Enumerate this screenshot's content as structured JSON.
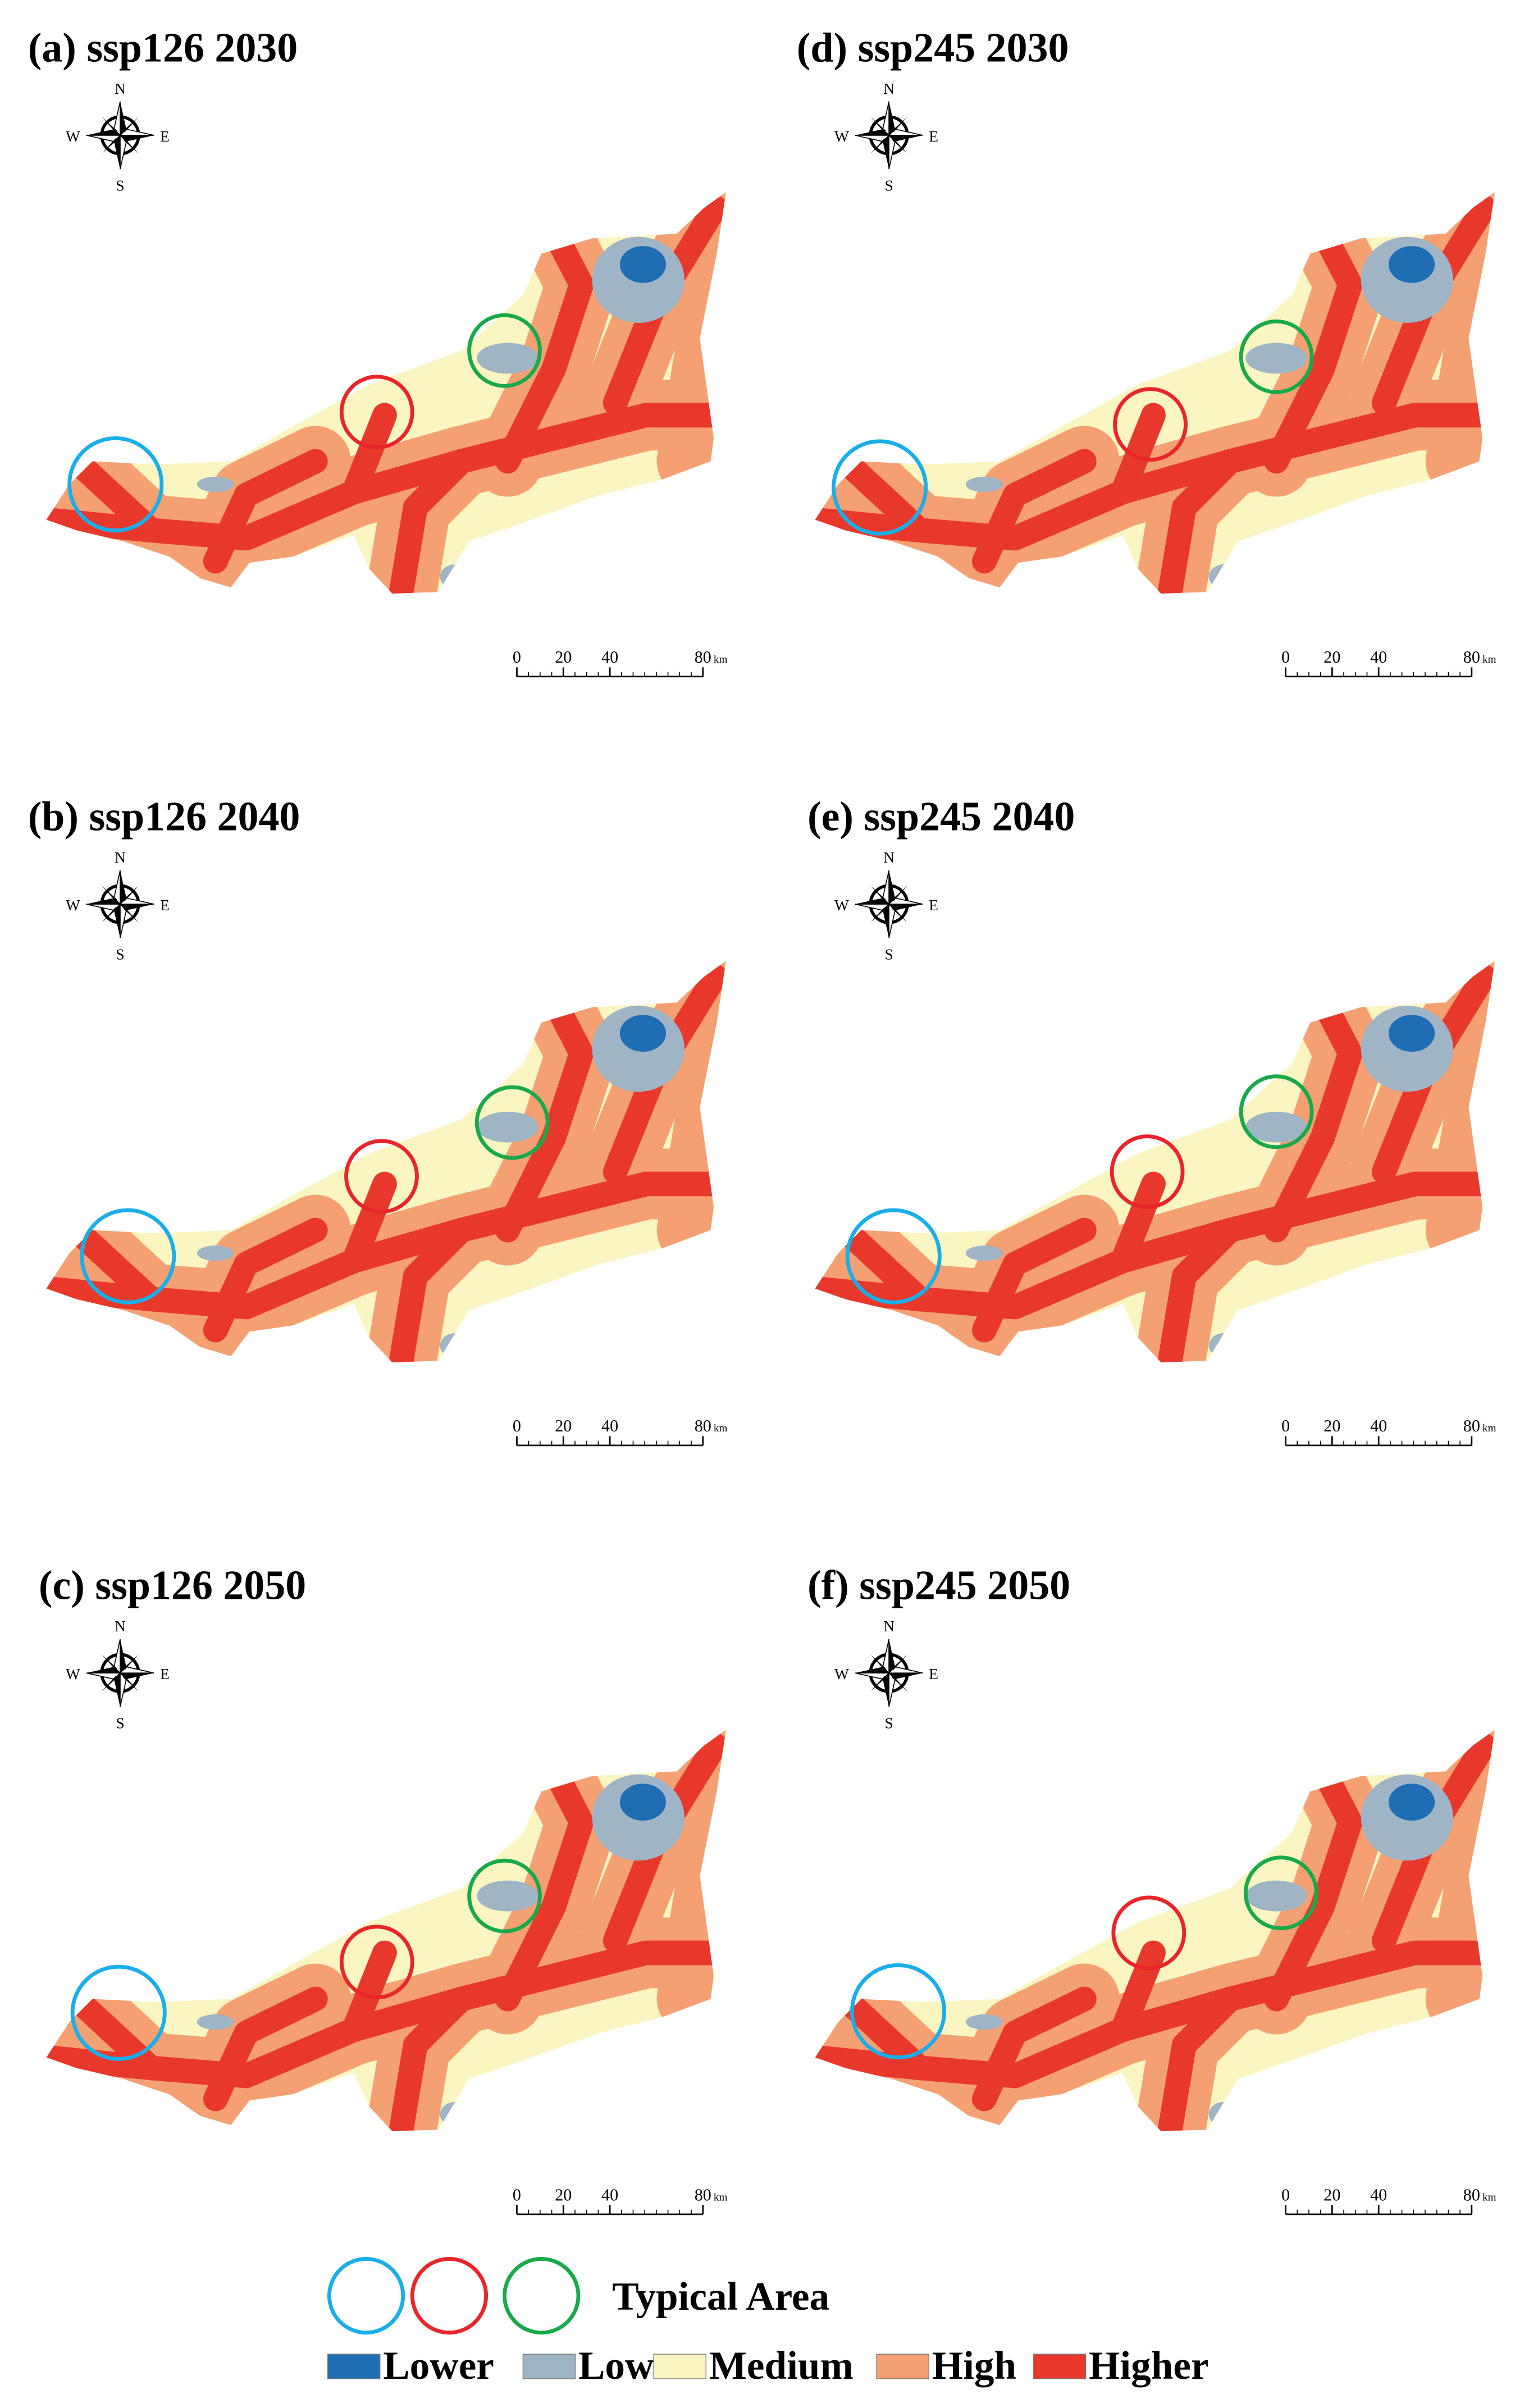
{
  "panels": [
    {
      "title": "(a) ssp126 2030"
    },
    {
      "title": "(b) ssp126 2040"
    },
    {
      "title": "(c) ssp126 2050"
    },
    {
      "title": "(d) ssp245 2030"
    },
    {
      "title": "(e) ssp245 2040"
    },
    {
      "title": "(f) ssp245 2050"
    }
  ],
  "compass": {
    "north": "N",
    "east": "E",
    "south": "S",
    "west": "W"
  },
  "scale_bar": {
    "ticks": [
      0,
      20,
      40,
      80
    ],
    "unit": "km"
  },
  "legend": {
    "typical_area": "Typical Area",
    "classes": [
      {
        "name": "Lower",
        "color": "#1f6db3"
      },
      {
        "name": "Low",
        "color": "#9fb5c6"
      },
      {
        "name": "Medium",
        "color": "#fbf5c2"
      },
      {
        "name": "High",
        "color": "#f5a072"
      },
      {
        "name": "Higher",
        "color": "#e8382b"
      }
    ]
  }
}
